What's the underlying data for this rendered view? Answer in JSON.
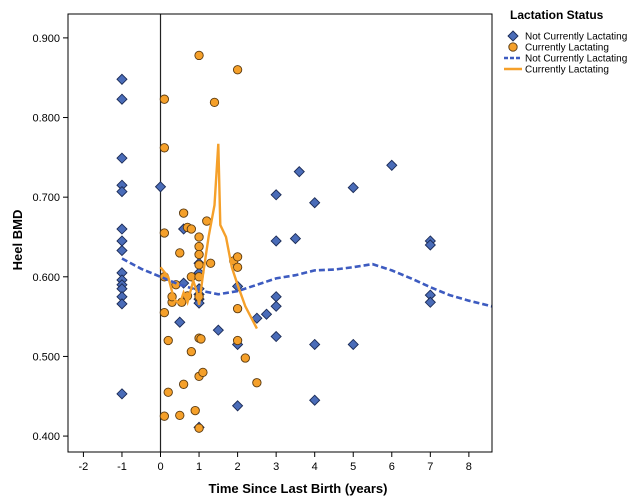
{
  "chart_data": {
    "type": "scatter",
    "xlabel": "Time Since Last Birth (years)",
    "ylabel": "Heel BMD",
    "xlim": [
      -2.4,
      8.6
    ],
    "ylim": [
      0.38,
      0.93
    ],
    "xticks": [
      "-2",
      "-1",
      "0",
      "1",
      "2",
      "3",
      "4",
      "5",
      "6",
      "7",
      "8"
    ],
    "yticks": [
      "0.400",
      "0.500",
      "0.600",
      "0.700",
      "0.800",
      "0.900"
    ],
    "reference_line_x": 0,
    "grid": false,
    "legend": {
      "title": "Lactation Status",
      "position": "top-right",
      "entries": [
        "Not Currently Lactating",
        "Currently Lactating",
        "Not Currently Lactating",
        "Currently Lactating"
      ]
    },
    "colors": {
      "not_lactating": "#4a6cb8",
      "lactating": "#f5a02a",
      "not_lactating_line": "#3d5bc0",
      "lactating_line": "#f5a02a"
    },
    "series": [
      {
        "name": "Not Currently Lactating",
        "marker": "diamond",
        "points": [
          [
            -1,
            0.848
          ],
          [
            -1,
            0.823
          ],
          [
            -1,
            0.749
          ],
          [
            -1,
            0.715
          ],
          [
            -1,
            0.707
          ],
          [
            -1,
            0.66
          ],
          [
            -1,
            0.645
          ],
          [
            -1,
            0.633
          ],
          [
            -1,
            0.605
          ],
          [
            -1,
            0.596
          ],
          [
            -1,
            0.59
          ],
          [
            -1,
            0.585
          ],
          [
            -1,
            0.575
          ],
          [
            -1,
            0.566
          ],
          [
            -1,
            0.453
          ],
          [
            0,
            0.713
          ],
          [
            0.6,
            0.66
          ],
          [
            0.6,
            0.592
          ],
          [
            1,
            0.617
          ],
          [
            1,
            0.605
          ],
          [
            1,
            0.585
          ],
          [
            1,
            0.578
          ],
          [
            1,
            0.572
          ],
          [
            1,
            0.567
          ],
          [
            1,
            0.411
          ],
          [
            1.5,
            0.533
          ],
          [
            2,
            0.588
          ],
          [
            2,
            0.515
          ],
          [
            2,
            0.438
          ],
          [
            2.5,
            0.548
          ],
          [
            2.75,
            0.553
          ],
          [
            3,
            0.703
          ],
          [
            3,
            0.645
          ],
          [
            3,
            0.575
          ],
          [
            3,
            0.563
          ],
          [
            3,
            0.525
          ],
          [
            3.5,
            0.648
          ],
          [
            3.6,
            0.732
          ],
          [
            4,
            0.693
          ],
          [
            4,
            0.515
          ],
          [
            4,
            0.445
          ],
          [
            5,
            0.712
          ],
          [
            5,
            0.515
          ],
          [
            6,
            0.74
          ],
          [
            7,
            0.645
          ],
          [
            7,
            0.64
          ],
          [
            7,
            0.577
          ],
          [
            7,
            0.568
          ],
          [
            0.5,
            0.543
          ]
        ]
      },
      {
        "name": "Currently Lactating",
        "marker": "circle",
        "points": [
          [
            0.1,
            0.823
          ],
          [
            0.1,
            0.762
          ],
          [
            0.1,
            0.655
          ],
          [
            0.1,
            0.6
          ],
          [
            0.1,
            0.555
          ],
          [
            0.2,
            0.52
          ],
          [
            0.2,
            0.455
          ],
          [
            0.1,
            0.425
          ],
          [
            0.3,
            0.568
          ],
          [
            0.3,
            0.575
          ],
          [
            0.4,
            0.59
          ],
          [
            0.5,
            0.63
          ],
          [
            0.5,
            0.426
          ],
          [
            0.6,
            0.68
          ],
          [
            0.6,
            0.465
          ],
          [
            0.7,
            0.662
          ],
          [
            0.7,
            0.576
          ],
          [
            0.8,
            0.66
          ],
          [
            0.8,
            0.6
          ],
          [
            0.8,
            0.506
          ],
          [
            0.9,
            0.432
          ],
          [
            1.0,
            0.878
          ],
          [
            1.0,
            0.65
          ],
          [
            1.0,
            0.638
          ],
          [
            1.0,
            0.628
          ],
          [
            1.0,
            0.615
          ],
          [
            1.0,
            0.6
          ],
          [
            1.0,
            0.523
          ],
          [
            1.0,
            0.475
          ],
          [
            1.0,
            0.41
          ],
          [
            1.05,
            0.522
          ],
          [
            1.1,
            0.48
          ],
          [
            1.2,
            0.67
          ],
          [
            1.3,
            0.617
          ],
          [
            1.4,
            0.819
          ],
          [
            1.9,
            0.62
          ],
          [
            2.0,
            0.86
          ],
          [
            2.0,
            0.625
          ],
          [
            2.0,
            0.612
          ],
          [
            2.0,
            0.56
          ],
          [
            2.0,
            0.52
          ],
          [
            2.2,
            0.498
          ],
          [
            2.5,
            0.467
          ],
          [
            1.0,
            0.575
          ],
          [
            0.55,
            0.568
          ]
        ]
      },
      {
        "name": "Not Currently Lactating",
        "line": "dashed",
        "points": [
          [
            -1,
            0.623
          ],
          [
            -0.5,
            0.61
          ],
          [
            0,
            0.6
          ],
          [
            0.5,
            0.59
          ],
          [
            1,
            0.583
          ],
          [
            1.5,
            0.578
          ],
          [
            2,
            0.582
          ],
          [
            2.5,
            0.59
          ],
          [
            3,
            0.598
          ],
          [
            3.5,
            0.602
          ],
          [
            4,
            0.608
          ],
          [
            4.5,
            0.609
          ],
          [
            5,
            0.612
          ],
          [
            5.5,
            0.616
          ],
          [
            6,
            0.608
          ],
          [
            6.5,
            0.598
          ],
          [
            7,
            0.587
          ],
          [
            7.5,
            0.577
          ],
          [
            8,
            0.57
          ],
          [
            8.6,
            0.563
          ]
        ]
      },
      {
        "name": "Currently Lactating",
        "line": "solid",
        "points": [
          [
            0,
            0.612
          ],
          [
            0.2,
            0.6
          ],
          [
            0.35,
            0.572
          ],
          [
            0.5,
            0.566
          ],
          [
            0.6,
            0.58
          ],
          [
            0.7,
            0.568
          ],
          [
            0.85,
            0.595
          ],
          [
            0.95,
            0.58
          ],
          [
            1.0,
            0.565
          ],
          [
            1.1,
            0.602
          ],
          [
            1.25,
            0.651
          ],
          [
            1.4,
            0.69
          ],
          [
            1.5,
            0.767
          ],
          [
            1.55,
            0.665
          ],
          [
            1.7,
            0.65
          ],
          [
            1.85,
            0.612
          ],
          [
            2.0,
            0.59
          ],
          [
            2.2,
            0.563
          ],
          [
            2.5,
            0.535
          ]
        ]
      }
    ]
  }
}
